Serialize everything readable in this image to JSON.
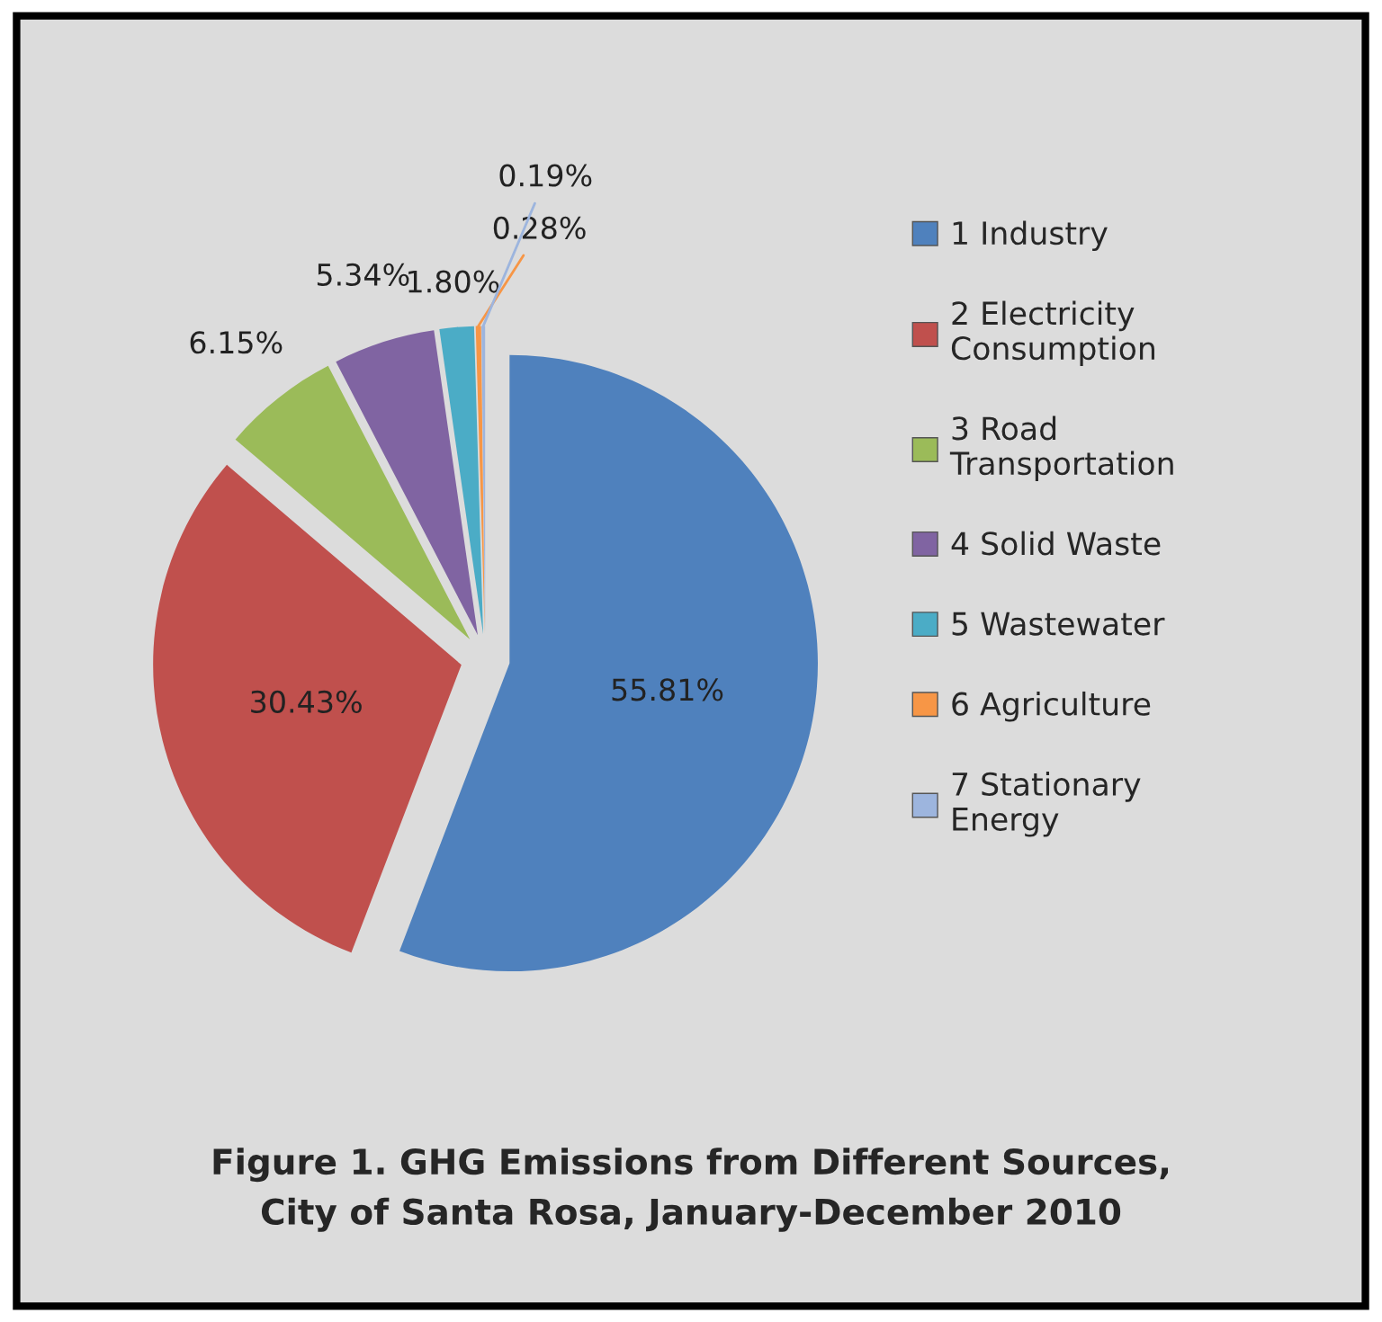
{
  "chart_data": {
    "type": "pie",
    "title": "Figure 1. GHG Emissions from Different Sources,\nCity of Santa Rosa, January-December 2010",
    "categories": [
      "1 Industry",
      "2 Electricity Consumption",
      "3 Road Transportation",
      "4 Solid Waste",
      "5 Wastewater",
      "6 Agriculture",
      "7 Stationary Energy"
    ],
    "values": [
      55.81,
      30.43,
      6.15,
      5.34,
      1.8,
      0.28,
      0.19
    ],
    "colors": [
      "#4f81bd",
      "#c0504d",
      "#9bbb59",
      "#8064a2",
      "#4bacc6",
      "#f79646",
      "#9db5de"
    ],
    "data_labels": true,
    "value_labels": [
      "55.81%",
      "30.43%",
      "6.15%",
      "5.34%",
      "1.80%",
      "0.28%",
      "0.19%"
    ],
    "legend": "right"
  }
}
